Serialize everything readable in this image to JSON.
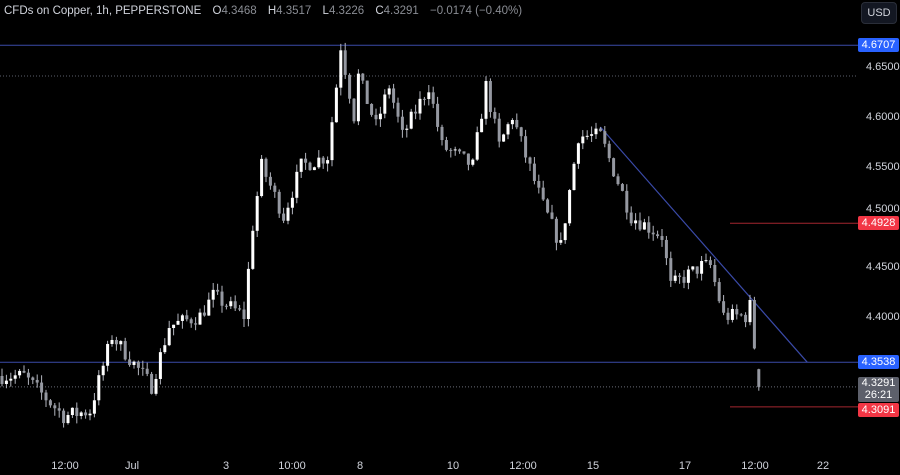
{
  "header": {
    "title": "CFDs on Copper, 1h, PEPPERSTONE",
    "o_label": "O",
    "o": "4.3468",
    "h_label": "H",
    "h": "4.3517",
    "l_label": "L",
    "l": "4.3226",
    "c_label": "C",
    "c": "4.3291",
    "change": "−0.0174 (−0.40%)"
  },
  "currency_button": "USD",
  "chart_data": {
    "type": "candlestick",
    "interval": "1h",
    "y_ticks": [
      "4.6500",
      "4.6000",
      "4.5500",
      "4.5000",
      "4.4500",
      "4.4000"
    ],
    "ylim": [
      4.27,
      4.69
    ],
    "x_ticks": [
      "12:00",
      "Jul",
      "3",
      "10:00",
      "8",
      "10",
      "12:00",
      "15",
      "17",
      "12:00",
      "22"
    ],
    "approx_close_path": [
      [
        0,
        4.34
      ],
      [
        5,
        4.34
      ],
      [
        14,
        4.3
      ],
      [
        20,
        4.305
      ],
      [
        25,
        4.38
      ],
      [
        34,
        4.33
      ],
      [
        38,
        4.39
      ],
      [
        45,
        4.4
      ],
      [
        48,
        4.42
      ],
      [
        55,
        4.4
      ],
      [
        57,
        4.49
      ],
      [
        59,
        4.55
      ],
      [
        64,
        4.5
      ],
      [
        68,
        4.55
      ],
      [
        74,
        4.56
      ],
      [
        76,
        4.63
      ],
      [
        77,
        4.67
      ],
      [
        80,
        4.6
      ],
      [
        81,
        4.64
      ],
      [
        85,
        4.59
      ],
      [
        88,
        4.63
      ],
      [
        91,
        4.58
      ],
      [
        97,
        4.63
      ],
      [
        100,
        4.57
      ],
      [
        107,
        4.55
      ],
      [
        110,
        4.63
      ],
      [
        113,
        4.57
      ],
      [
        116,
        4.6
      ],
      [
        119,
        4.56
      ],
      [
        123,
        4.51
      ],
      [
        127,
        4.47
      ],
      [
        131,
        4.58
      ],
      [
        136,
        4.58
      ],
      [
        143,
        4.5
      ],
      [
        150,
        4.48
      ],
      [
        152,
        4.43
      ],
      [
        159,
        4.45
      ],
      [
        161,
        4.45
      ],
      [
        164,
        4.4
      ],
      [
        169,
        4.4
      ],
      [
        170,
        4.41
      ],
      [
        171,
        4.37
      ],
      [
        172,
        4.3291
      ]
    ],
    "horizontal_levels": [
      {
        "price": "4.6707",
        "color": "#2962ff",
        "style": "solid"
      },
      {
        "price": "4.3538",
        "color": "#2962ff",
        "style": "solid"
      },
      {
        "price": "4.4928",
        "color": "#f23645",
        "style": "solid"
      },
      {
        "price": "4.3091",
        "color": "#f23645",
        "style": "solid"
      },
      {
        "price": "4.6400",
        "color": "#787b86",
        "style": "dotted"
      }
    ],
    "trendline": {
      "from": [
        136,
        4.589
      ],
      "to": [
        183,
        4.3538
      ],
      "color": "#2962ff"
    },
    "last_price": "4.3291",
    "countdown": "26:21",
    "colors": {
      "up": "#ffffff",
      "down": "#ffffff",
      "wick": "#b2b5be"
    }
  }
}
